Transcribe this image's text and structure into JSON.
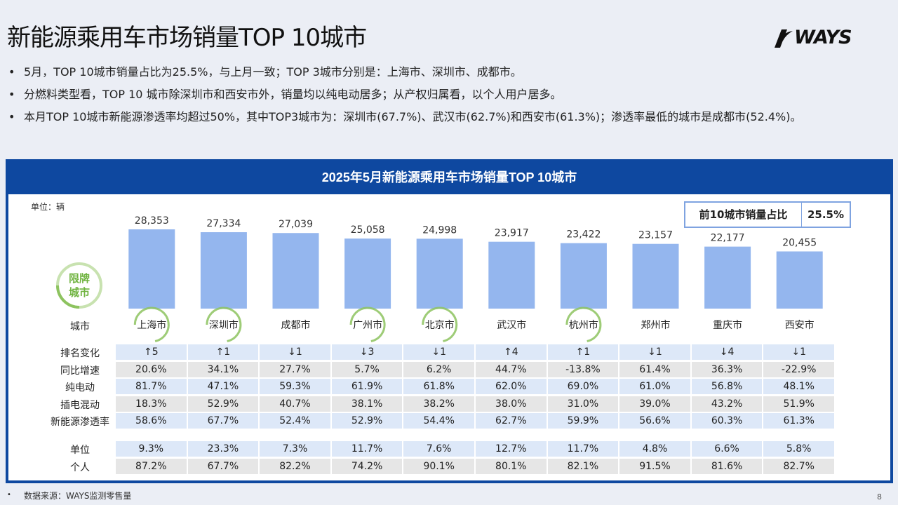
{
  "title": "新能源乘用车市场销量TOP 10城市",
  "logo_text": "WAYS",
  "bullets": [
    "5月，TOP 10城市销量占比为25.5%，与上月一致；TOP 3城市分别是：上海市、深圳市、成都市。",
    "分燃料类型看，TOP 10 城市除深圳市和西安市外，销量均以纯电动居多；从产权归属看，以个人用户居多。",
    "本月TOP 10城市新能源渗透率均超过50%，其中TOP3城市为：深圳市(67.7%)、武汉市(62.7%)和西安市(61.3%)；渗透率最低的城市是成都市(52.4%)。"
  ],
  "panel_title": "2025年5月新能源乘用车市场销量TOP 10城市",
  "unit_label": "单位：辆",
  "share_box": {
    "label": "前10城市销量占比",
    "value": "25.5%"
  },
  "restricted_label": "限牌城市",
  "city_row_label": "城市",
  "chart_data": {
    "type": "bar",
    "categories": [
      "上海市",
      "深圳市",
      "成都市",
      "广州市",
      "北京市",
      "武汉市",
      "杭州市",
      "郑州市",
      "重庆市",
      "西安市"
    ],
    "values": [
      28353,
      27334,
      27039,
      25058,
      24998,
      23917,
      23422,
      23157,
      22177,
      20455
    ],
    "value_labels": [
      "28,353",
      "27,334",
      "27,039",
      "25,058",
      "24,998",
      "23,917",
      "23,422",
      "23,157",
      "22,177",
      "20,455"
    ],
    "restricted": [
      true,
      true,
      false,
      true,
      true,
      false,
      true,
      false,
      false,
      false
    ],
    "bar_color": "#94b6ee",
    "restricted_color": "#8dc35f"
  },
  "table": {
    "rows1": [
      {
        "label": "排名变化",
        "values": [
          "↑5",
          "↑1",
          "↓1",
          "↓3",
          "↓1",
          "↑4",
          "↑1",
          "↓1",
          "↓4",
          "↓1"
        ]
      },
      {
        "label": "同比增速",
        "values": [
          "20.6%",
          "34.1%",
          "27.7%",
          "5.7%",
          "6.2%",
          "44.7%",
          "-13.8%",
          "61.4%",
          "36.3%",
          "-22.9%"
        ]
      },
      {
        "label": "纯电动",
        "values": [
          "81.7%",
          "47.1%",
          "59.3%",
          "61.9%",
          "61.8%",
          "62.0%",
          "69.0%",
          "61.0%",
          "56.8%",
          "48.1%"
        ]
      },
      {
        "label": "插电混动",
        "values": [
          "18.3%",
          "52.9%",
          "40.7%",
          "38.1%",
          "38.2%",
          "38.0%",
          "31.0%",
          "39.0%",
          "43.2%",
          "51.9%"
        ]
      },
      {
        "label": "新能源渗透率",
        "values": [
          "58.6%",
          "67.7%",
          "52.4%",
          "52.9%",
          "54.4%",
          "62.7%",
          "59.9%",
          "56.6%",
          "60.3%",
          "61.3%"
        ]
      }
    ],
    "rows2": [
      {
        "label": "单位",
        "values": [
          "9.3%",
          "23.3%",
          "7.3%",
          "11.7%",
          "7.6%",
          "12.7%",
          "11.7%",
          "4.8%",
          "6.6%",
          "5.8%"
        ]
      },
      {
        "label": "个人",
        "values": [
          "87.2%",
          "67.7%",
          "82.2%",
          "74.2%",
          "90.1%",
          "80.1%",
          "82.1%",
          "91.5%",
          "81.6%",
          "82.7%"
        ]
      }
    ]
  },
  "footer": "数据来源：WAYS监测零售量",
  "footer_bullet": "•",
  "page_number": "8",
  "colors": {
    "panel": "#0e48a0",
    "row_blue": "#dde8f8",
    "row_gray": "#e6e6e6"
  }
}
